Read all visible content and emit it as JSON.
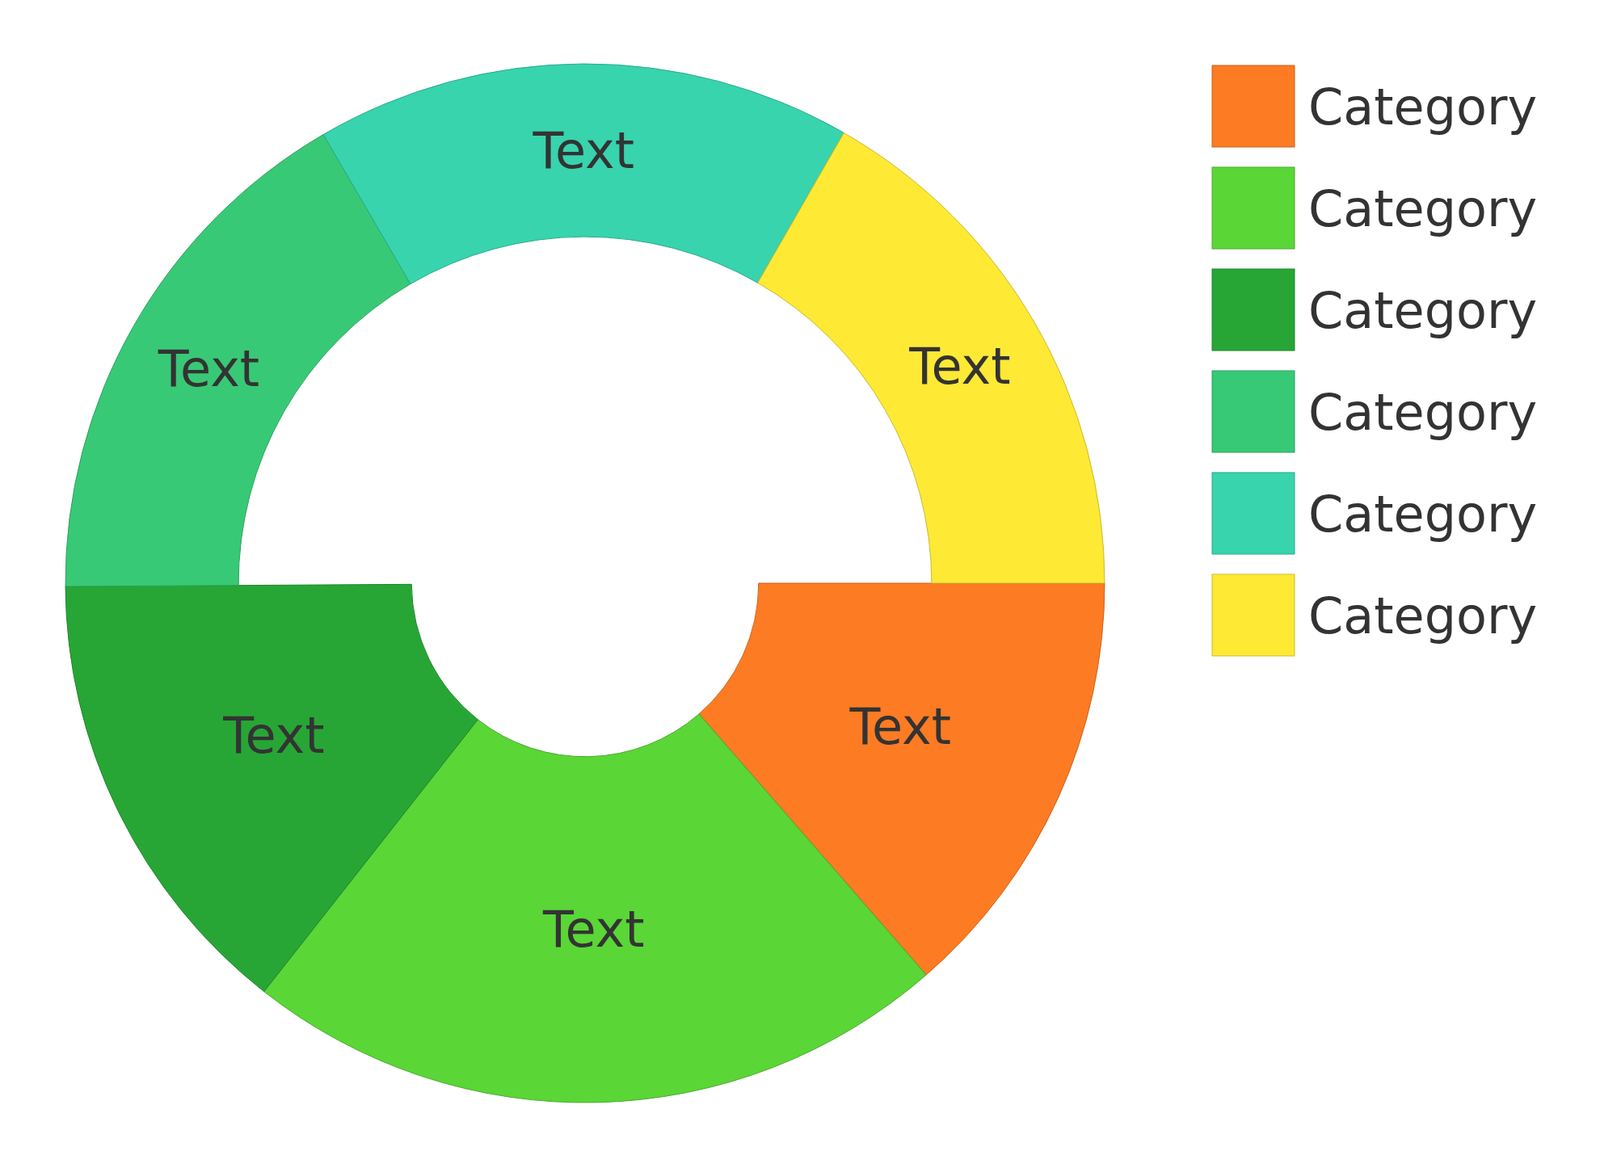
{
  "chart_data": {
    "type": "donut",
    "categories": [
      "Category",
      "Category",
      "Category",
      "Category",
      "Category",
      "Category"
    ],
    "values": [
      13.6,
      22,
      14.3,
      16.7,
      16.7,
      16.7
    ],
    "labels": [
      "Text",
      "Text",
      "Text",
      "Text",
      "Text",
      "Text"
    ],
    "colors": [
      "#fd7b23",
      "#5ad637",
      "#27a636",
      "#38c976",
      "#37d4ae",
      "#fee935"
    ],
    "legend": "right"
  }
}
